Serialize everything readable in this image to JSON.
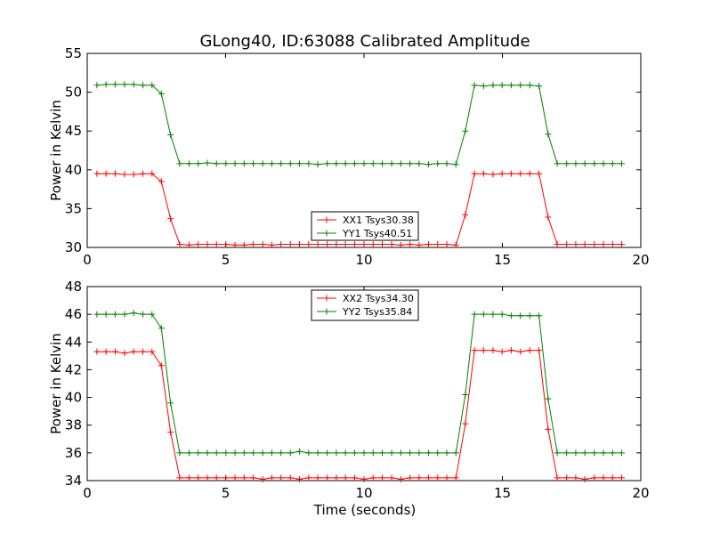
{
  "chart_data": {
    "type": "line",
    "title": "GLong40, ID:63088 Calibrated Amplitude",
    "xlabel": "Time (seconds)",
    "colors": {
      "XX": "#ff0000",
      "YY": "#008000"
    },
    "subplots": [
      {
        "ylabel": "Power in Kelvin",
        "xlim": [
          0,
          20
        ],
        "ylim": [
          30,
          55
        ],
        "xticks": [
          "0",
          "5",
          "10",
          "15",
          "20"
        ],
        "yticks": [
          "30",
          "35",
          "40",
          "45",
          "50",
          "55"
        ],
        "legend_location": "lower-center",
        "x": [
          0.35,
          0.68,
          1.01,
          1.35,
          1.68,
          2.01,
          2.34,
          2.68,
          3.01,
          3.34,
          3.68,
          4.01,
          4.34,
          4.67,
          5.01,
          5.34,
          5.67,
          6.0,
          6.34,
          6.67,
          7.0,
          7.34,
          7.67,
          8.0,
          8.33,
          8.67,
          9.0,
          9.33,
          9.66,
          10.0,
          10.33,
          10.66,
          11.0,
          11.33,
          11.66,
          11.99,
          12.33,
          12.66,
          12.99,
          13.32,
          13.66,
          13.99,
          14.32,
          14.66,
          14.99,
          15.32,
          15.65,
          15.99,
          16.32,
          16.65,
          16.98,
          17.32,
          17.65,
          17.98,
          18.32,
          18.65,
          18.98,
          19.31
        ],
        "series": [
          {
            "name": "XX1 Tsys30.38",
            "color": "#ff0000",
            "values": [
              39.5,
              39.5,
              39.5,
              39.4,
              39.4,
              39.5,
              39.5,
              38.5,
              33.7,
              30.4,
              30.3,
              30.4,
              30.4,
              30.4,
              30.4,
              30.3,
              30.3,
              30.4,
              30.4,
              30.3,
              30.4,
              30.4,
              30.4,
              30.4,
              30.4,
              30.4,
              30.4,
              30.4,
              30.4,
              30.4,
              30.4,
              30.4,
              30.4,
              30.3,
              30.4,
              30.3,
              30.4,
              30.4,
              30.4,
              30.3,
              34.2,
              39.5,
              39.5,
              39.4,
              39.5,
              39.5,
              39.5,
              39.5,
              39.5,
              33.9,
              30.4,
              30.4,
              30.4,
              30.4,
              30.4,
              30.4,
              30.4,
              30.4
            ]
          },
          {
            "name": "YY1 Tsys40.51",
            "color": "#008000",
            "values": [
              50.9,
              51.0,
              51.0,
              51.0,
              51.0,
              50.9,
              50.9,
              49.8,
              44.5,
              40.8,
              40.8,
              40.8,
              40.9,
              40.8,
              40.8,
              40.8,
              40.8,
              40.8,
              40.8,
              40.8,
              40.8,
              40.8,
              40.8,
              40.8,
              40.7,
              40.8,
              40.8,
              40.8,
              40.8,
              40.8,
              40.8,
              40.8,
              40.8,
              40.8,
              40.8,
              40.8,
              40.7,
              40.8,
              40.8,
              40.7,
              45.0,
              50.9,
              50.8,
              50.9,
              50.9,
              50.9,
              50.9,
              50.9,
              50.8,
              44.6,
              40.8,
              40.8,
              40.8,
              40.8,
              40.8,
              40.8,
              40.8,
              40.8
            ]
          }
        ]
      },
      {
        "ylabel": "Power in Kelvin",
        "xlim": [
          0,
          20
        ],
        "ylim": [
          34,
          48
        ],
        "xticks": [
          "0",
          "5",
          "10",
          "15",
          "20"
        ],
        "yticks": [
          "34",
          "36",
          "38",
          "40",
          "42",
          "44",
          "46",
          "48"
        ],
        "legend_location": "upper-center",
        "x": [
          0.35,
          0.68,
          1.01,
          1.35,
          1.68,
          2.01,
          2.34,
          2.68,
          3.01,
          3.34,
          3.68,
          4.01,
          4.34,
          4.67,
          5.01,
          5.34,
          5.67,
          6.0,
          6.34,
          6.67,
          7.0,
          7.34,
          7.67,
          8.0,
          8.33,
          8.67,
          9.0,
          9.33,
          9.66,
          10.0,
          10.33,
          10.66,
          11.0,
          11.33,
          11.66,
          11.99,
          12.33,
          12.66,
          12.99,
          13.32,
          13.66,
          13.99,
          14.32,
          14.66,
          14.99,
          15.32,
          15.65,
          15.99,
          16.32,
          16.65,
          16.98,
          17.32,
          17.65,
          17.98,
          18.32,
          18.65,
          18.98,
          19.31
        ],
        "series": [
          {
            "name": "XX2 Tsys34.30",
            "color": "#ff0000",
            "values": [
              43.3,
              43.3,
              43.3,
              43.2,
              43.3,
              43.3,
              43.3,
              42.3,
              37.5,
              34.2,
              34.2,
              34.2,
              34.2,
              34.2,
              34.2,
              34.2,
              34.2,
              34.2,
              34.1,
              34.2,
              34.2,
              34.2,
              34.1,
              34.2,
              34.2,
              34.2,
              34.2,
              34.2,
              34.2,
              34.1,
              34.2,
              34.2,
              34.2,
              34.1,
              34.2,
              34.2,
              34.2,
              34.2,
              34.2,
              34.2,
              38.1,
              43.4,
              43.4,
              43.4,
              43.3,
              43.4,
              43.3,
              43.4,
              43.4,
              37.7,
              34.2,
              34.2,
              34.2,
              34.1,
              34.2,
              34.2,
              34.2,
              34.2
            ]
          },
          {
            "name": "YY2 Tsys35.84",
            "color": "#008000",
            "values": [
              46.0,
              46.0,
              46.0,
              46.0,
              46.1,
              46.0,
              46.0,
              45.0,
              39.6,
              36.0,
              36.0,
              36.0,
              36.0,
              36.0,
              36.0,
              36.0,
              36.0,
              36.0,
              36.0,
              36.0,
              36.0,
              36.0,
              36.1,
              36.0,
              36.0,
              36.0,
              36.0,
              36.0,
              36.0,
              36.0,
              36.0,
              36.0,
              36.0,
              36.0,
              36.0,
              36.0,
              36.0,
              36.0,
              36.0,
              36.0,
              40.2,
              46.0,
              46.0,
              46.0,
              46.0,
              45.9,
              45.9,
              45.9,
              45.9,
              39.9,
              36.0,
              36.0,
              36.0,
              36.0,
              36.0,
              36.0,
              36.0,
              36.0
            ]
          }
        ]
      }
    ]
  }
}
